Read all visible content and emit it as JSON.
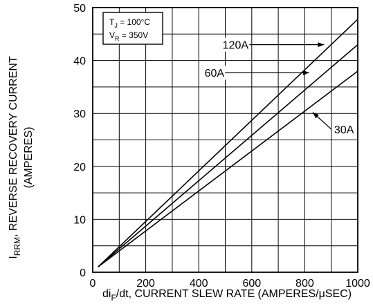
{
  "chart_data": {
    "type": "line",
    "title": "",
    "xlabel": {
      "pre": "di",
      "sub": "F",
      "post": "/dt, CURRENT SLEW RATE (AMPERES/μSEC)"
    },
    "ylabel": {
      "pre": "I",
      "sub": "RRM",
      "post": ", REVERSE RECOVERY CURRENT",
      "line2": "(AMPERES)"
    },
    "xlim": [
      0,
      1000
    ],
    "ylim": [
      0,
      50
    ],
    "xticks": [
      "0",
      "200",
      "400",
      "600",
      "800",
      "1000"
    ],
    "yticks": [
      "0",
      "10",
      "20",
      "30",
      "40",
      "50"
    ],
    "grid": true,
    "conditions": [
      {
        "pre": "T",
        "sub": "J",
        "post": " = 100°C"
      },
      {
        "pre": "V",
        "sub": "R",
        "post": " = 350V"
      }
    ],
    "series": [
      {
        "name": "120A",
        "x": [
          20,
          1000
        ],
        "y": [
          1.0,
          47.8
        ]
      },
      {
        "name": "60A",
        "x": [
          20,
          1000
        ],
        "y": [
          1.0,
          43.0
        ]
      },
      {
        "name": "30A",
        "x": [
          20,
          1000
        ],
        "y": [
          1.0,
          38.0
        ]
      }
    ],
    "annotations": [
      {
        "series": "120A",
        "text": "120A",
        "label_x": 490,
        "label_y": 43.0,
        "arrow_to_x": 873,
        "arrow_to_y": 43.0
      },
      {
        "series": "60A",
        "text": "60A",
        "label_x": 422,
        "label_y": 37.7,
        "arrow_to_x": 817,
        "arrow_to_y": 37.7
      },
      {
        "series": "30A",
        "text": "30A",
        "label_x": 911,
        "label_y": 27.0,
        "arrow_to_x": 830,
        "arrow_to_y": 30.2
      }
    ]
  }
}
